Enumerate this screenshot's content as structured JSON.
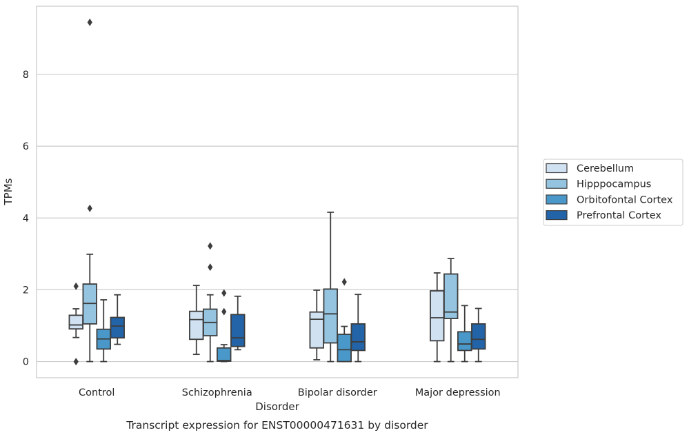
{
  "chart_data": {
    "type": "box",
    "title": "Transcript expression for ENST00000471631 by disorder",
    "xlabel": "Disorder",
    "ylabel": "TPMs",
    "ylim": [
      -0.45,
      9.9
    ],
    "yticks": [
      0,
      2,
      4,
      6,
      8
    ],
    "grid": "horizontal",
    "legend_position": "right",
    "categories": [
      "Control",
      "Schizophrenia",
      "Bipolar disorder",
      "Major depression"
    ],
    "series": [
      {
        "name": "Cerebellum",
        "color": "#d0e1f2",
        "boxes": [
          {
            "whislo": 0.67,
            "q1": 0.91,
            "med": 1.02,
            "q3": 1.29,
            "whishi": 1.47,
            "fliers": [
              2.1,
              0.0
            ]
          },
          {
            "whislo": 0.2,
            "q1": 0.62,
            "med": 1.17,
            "q3": 1.4,
            "whishi": 2.12,
            "fliers": []
          },
          {
            "whislo": 0.05,
            "q1": 0.38,
            "med": 1.18,
            "q3": 1.38,
            "whishi": 1.99,
            "fliers": []
          },
          {
            "whislo": 0.0,
            "q1": 0.58,
            "med": 1.22,
            "q3": 1.97,
            "whishi": 2.47,
            "fliers": []
          }
        ]
      },
      {
        "name": "Hipppocampus",
        "color": "#94c4df",
        "boxes": [
          {
            "whislo": 0.0,
            "q1": 1.05,
            "med": 1.62,
            "q3": 2.16,
            "whishi": 2.99,
            "fliers": [
              9.45,
              4.27
            ]
          },
          {
            "whislo": 0.0,
            "q1": 0.72,
            "med": 1.09,
            "q3": 1.46,
            "whishi": 1.86,
            "fliers": [
              3.22,
              2.63
            ]
          },
          {
            "whislo": 0.0,
            "q1": 0.52,
            "med": 1.33,
            "q3": 2.02,
            "whishi": 4.16,
            "fliers": []
          },
          {
            "whislo": 0.0,
            "q1": 1.2,
            "med": 1.38,
            "q3": 2.44,
            "whishi": 2.87,
            "fliers": []
          }
        ]
      },
      {
        "name": "Orbitofontal Cortex",
        "color": "#4a98c9",
        "boxes": [
          {
            "whislo": 0.0,
            "q1": 0.35,
            "med": 0.63,
            "q3": 0.9,
            "whishi": 1.72,
            "fliers": []
          },
          {
            "whislo": 0.0,
            "q1": 0.01,
            "med": 0.03,
            "q3": 0.38,
            "whishi": 0.47,
            "fliers": [
              1.91,
              1.39
            ]
          },
          {
            "whislo": 0.0,
            "q1": 0.0,
            "med": 0.33,
            "q3": 0.76,
            "whishi": 0.98,
            "fliers": [
              2.22
            ]
          },
          {
            "whislo": 0.0,
            "q1": 0.31,
            "med": 0.49,
            "q3": 0.83,
            "whishi": 1.56,
            "fliers": []
          }
        ]
      },
      {
        "name": "Prefrontal Cortex",
        "color": "#2264a7",
        "boxes": [
          {
            "whislo": 0.48,
            "q1": 0.66,
            "med": 0.99,
            "q3": 1.23,
            "whishi": 1.86,
            "fliers": []
          },
          {
            "whislo": 0.33,
            "q1": 0.42,
            "med": 0.66,
            "q3": 1.31,
            "whishi": 1.82,
            "fliers": []
          },
          {
            "whislo": 0.0,
            "q1": 0.31,
            "med": 0.55,
            "q3": 1.05,
            "whishi": 1.87,
            "fliers": []
          },
          {
            "whislo": 0.0,
            "q1": 0.35,
            "med": 0.62,
            "q3": 1.05,
            "whishi": 1.48,
            "fliers": []
          }
        ]
      }
    ]
  }
}
